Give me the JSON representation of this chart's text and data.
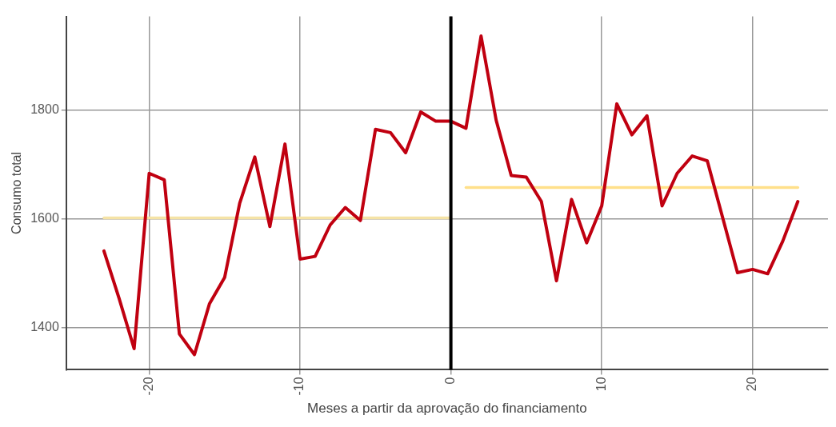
{
  "chart_data": {
    "type": "line",
    "xlabel": "Meses a partir da aprovação do financiamento",
    "ylabel": "Consumo total",
    "xlim": [
      -25.5,
      25
    ],
    "xticks": [
      -20,
      -10,
      0,
      10,
      20
    ],
    "ylim": [
      1322,
      1973
    ],
    "yticks": [
      1400,
      1600,
      1800
    ],
    "grid": true,
    "legend": false,
    "line_style": "solid",
    "marker": "none",
    "series": [
      {
        "color": "#c00010",
        "x": [
          -23,
          -22,
          -21,
          -20,
          -19,
          -18,
          -17,
          -16,
          -15,
          -14,
          -13,
          -12,
          -11,
          -10,
          -9,
          -8,
          -7,
          -6,
          -5,
          -4,
          -3,
          -2,
          -1,
          0,
          1,
          2,
          3,
          4,
          5,
          6,
          7,
          8,
          9,
          10,
          11,
          12,
          13,
          14,
          15,
          16,
          17,
          18,
          19,
          20,
          21,
          22,
          23
        ],
        "values": [
          1541,
          1454,
          1361,
          1684,
          1672,
          1388,
          1350,
          1444,
          1492,
          1629,
          1714,
          1586,
          1738,
          1526,
          1531,
          1589,
          1621,
          1597,
          1765,
          1759,
          1722,
          1797,
          1780,
          1780,
          1767,
          1937,
          1782,
          1680,
          1677,
          1632,
          1486,
          1636,
          1556,
          1624,
          1812,
          1755,
          1790,
          1624,
          1684,
          1716,
          1707,
          1604,
          1501,
          1507,
          1499,
          1559,
          1632
        ]
      },
      {
        "color": "#f5e3a6",
        "x": [
          -23,
          0
        ],
        "values": [
          1602,
          1602
        ]
      },
      {
        "color": "#ffe08a",
        "x": [
          1,
          23
        ],
        "values": [
          1658,
          1658
        ]
      }
    ],
    "ref_lines": [
      {
        "axis": "x",
        "value": 0,
        "color": "#000000",
        "line_style": "solid"
      }
    ]
  }
}
